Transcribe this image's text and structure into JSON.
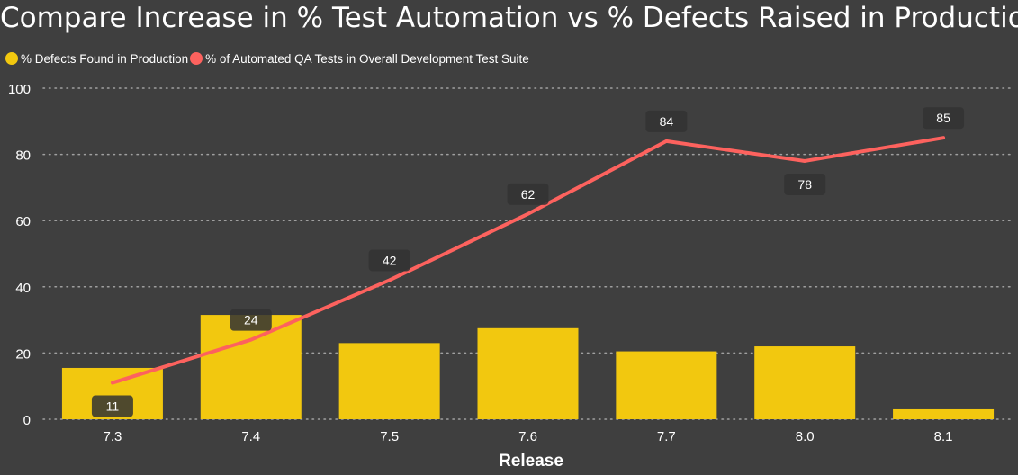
{
  "colors": {
    "background": "#3f3f3f",
    "bar": "#f2c80f",
    "line": "#fd625e",
    "grid": "#a0a0a0",
    "label_bg": "#333333",
    "text": "#ffffff"
  },
  "chart_data": {
    "type": "bar+line",
    "title": "Compare Increase in % Test Automation vs % Defects Raised in Production.",
    "xlabel": "Release",
    "ylabel": "",
    "categories": [
      "7.3",
      "7.4",
      "7.5",
      "7.6",
      "7.7",
      "8.0",
      "8.1"
    ],
    "ylim": [
      0,
      100
    ],
    "yticks": [
      "0",
      "20",
      "40",
      "60",
      "80",
      "100"
    ],
    "grid": "horizontal dotted",
    "legend_position": "top-left",
    "series": [
      {
        "name": "% Defects Found in Production",
        "type": "bar",
        "values": [
          15.5,
          31.5,
          23,
          27.5,
          20.5,
          22,
          3
        ]
      },
      {
        "name": "% of Automated QA Tests in Overall Development Test Suite",
        "type": "line",
        "values": [
          11,
          24,
          42,
          62,
          84,
          78,
          85
        ],
        "data_labels": [
          "11",
          "24",
          "42",
          "62",
          "84",
          "78",
          "85"
        ]
      }
    ]
  }
}
